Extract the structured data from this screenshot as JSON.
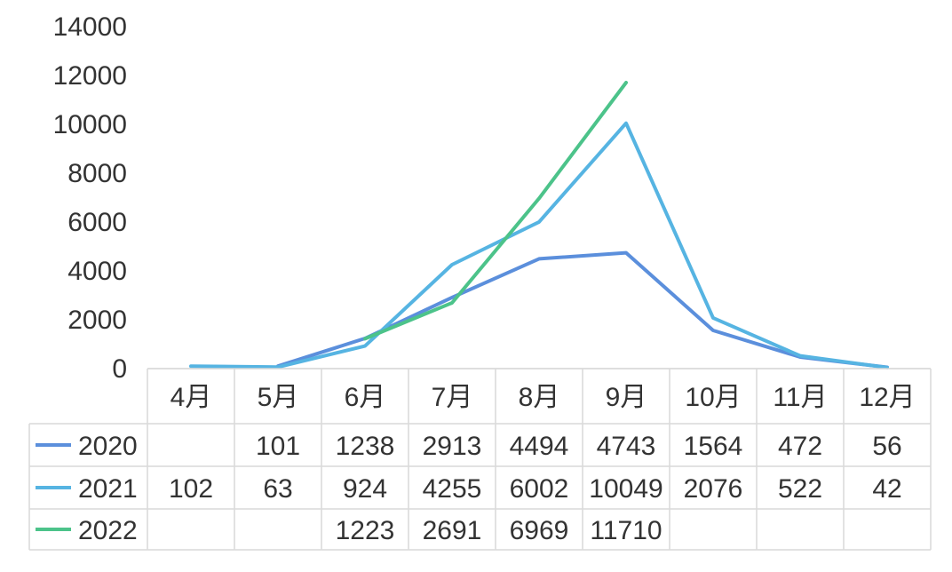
{
  "chart_data": {
    "type": "line",
    "categories": [
      "4月",
      "5月",
      "6月",
      "7月",
      "8月",
      "9月",
      "10月",
      "11月",
      "12月"
    ],
    "series": [
      {
        "name": "2020",
        "color": "#5b8fdc",
        "values": [
          null,
          101,
          1238,
          2913,
          4494,
          4743,
          1564,
          472,
          56
        ]
      },
      {
        "name": "2021",
        "color": "#56b4e2",
        "values": [
          102,
          63,
          924,
          4255,
          6002,
          10049,
          2076,
          522,
          42
        ]
      },
      {
        "name": "2022",
        "color": "#4cc38a",
        "values": [
          null,
          null,
          1223,
          2691,
          6969,
          11710,
          null,
          null,
          null
        ]
      }
    ],
    "y_ticks": [
      "0",
      "2000",
      "4000",
      "6000",
      "8000",
      "10000",
      "12000",
      "14000"
    ],
    "ylim": [
      0,
      14000
    ],
    "grid": false,
    "data_table": true
  }
}
